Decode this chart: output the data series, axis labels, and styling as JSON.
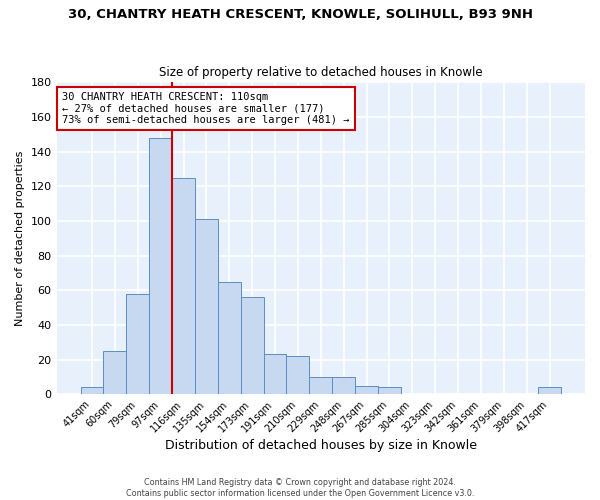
{
  "title": "30, CHANTRY HEATH CRESCENT, KNOWLE, SOLIHULL, B93 9NH",
  "subtitle": "Size of property relative to detached houses in Knowle",
  "xlabel": "Distribution of detached houses by size in Knowle",
  "ylabel": "Number of detached properties",
  "bar_labels": [
    "41sqm",
    "60sqm",
    "79sqm",
    "97sqm",
    "116sqm",
    "135sqm",
    "154sqm",
    "173sqm",
    "191sqm",
    "210sqm",
    "229sqm",
    "248sqm",
    "267sqm",
    "285sqm",
    "304sqm",
    "323sqm",
    "342sqm",
    "361sqm",
    "379sqm",
    "398sqm",
    "417sqm"
  ],
  "bar_heights": [
    4,
    25,
    58,
    148,
    125,
    101,
    65,
    56,
    23,
    22,
    10,
    10,
    5,
    4,
    0,
    0,
    0,
    0,
    0,
    0,
    4
  ],
  "bar_color": "#c6d9f1",
  "bar_edge_color": "#5b8ec4",
  "ylim": [
    0,
    180
  ],
  "yticks": [
    0,
    20,
    40,
    60,
    80,
    100,
    120,
    140,
    160,
    180
  ],
  "vline_x": 3.5,
  "vline_color": "#cc0000",
  "annotation_title": "30 CHANTRY HEATH CRESCENT: 110sqm",
  "annotation_line1": "← 27% of detached houses are smaller (177)",
  "annotation_line2": "73% of semi-detached houses are larger (481) →",
  "annotation_box_color": "white",
  "annotation_border_color": "#cc0000",
  "footer1": "Contains HM Land Registry data © Crown copyright and database right 2024.",
  "footer2": "Contains public sector information licensed under the Open Government Licence v3.0.",
  "fig_bg_color": "#ffffff",
  "plot_bg_color": "#e8f0fb",
  "grid_color": "#ffffff",
  "title_fontsize": 9.5,
  "subtitle_fontsize": 8.5
}
